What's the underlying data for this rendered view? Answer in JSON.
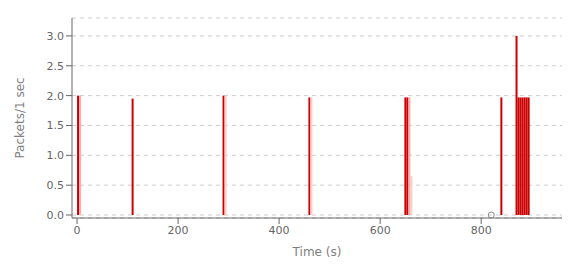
{
  "chart_data": {
    "type": "stem",
    "xlabel": "Time (s)",
    "ylabel": "Packets/1 sec",
    "xlim": [
      -10,
      960
    ],
    "ylim": [
      -0.05,
      3.3
    ],
    "xticks": [
      0,
      200,
      400,
      600,
      800
    ],
    "yticks": [
      {
        "value": 0,
        "label": "0.0"
      },
      0.5,
      {
        "value": 1.0,
        "label": "1.0"
      },
      1.5,
      {
        "value": 2.0,
        "label": "2.0"
      },
      2.5,
      {
        "value": 3.0,
        "label": "3.0"
      }
    ],
    "grid": true,
    "series": [
      {
        "type": "stem",
        "x": [
          2,
          6,
          110,
          290,
          294,
          460,
          464,
          650,
          654,
          658,
          662,
          840,
          870,
          874,
          878,
          882,
          886,
          890,
          894
        ],
        "values": [
          2.0,
          2.0,
          1.95,
          2.0,
          2.0,
          1.97,
          1.97,
          1.97,
          1.97,
          1.97,
          0.65,
          1.97,
          3.0,
          1.97,
          1.97,
          1.97,
          1.97,
          1.97,
          1.97
        ],
        "colors": [
          "#cc0000",
          "#ffaaaa",
          "#cc0000",
          "#cc0000",
          "#ffcccc",
          "#cc0000",
          "#ffcccc",
          "#cc0000",
          "#cc0000",
          "#ffaaaa",
          "#ffcccc",
          "#cc0000",
          "#cc0000",
          "#cc0000",
          "#cc0000",
          "#cc0000",
          "#cc0000",
          "#cc0000",
          "#cc0000"
        ]
      },
      {
        "type": "scatter",
        "marker": "circle",
        "color": "#888888",
        "x": [
          820
        ],
        "values": [
          0.0
        ]
      }
    ]
  }
}
